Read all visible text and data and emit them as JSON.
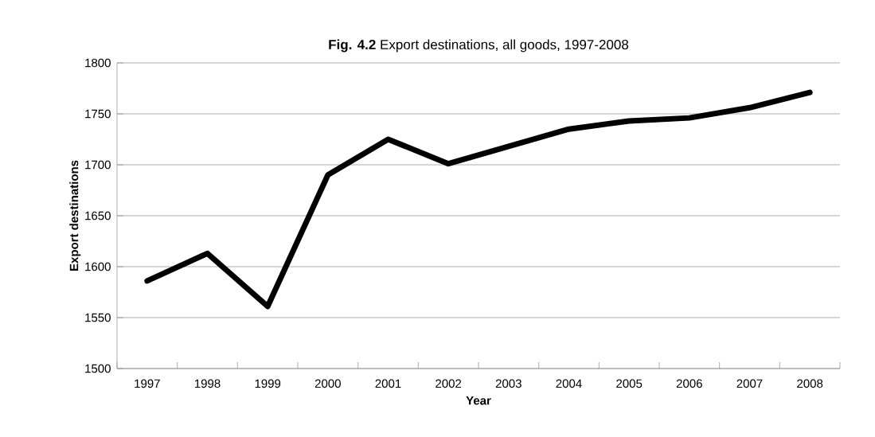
{
  "chart_data": {
    "type": "line",
    "title": "**Fig. 4.2** Export destinations, all goods, 1997-2008",
    "xlabel": "Year",
    "ylabel": "Export destinations",
    "categories": [
      "1997",
      "1998",
      "1999",
      "2000",
      "2001",
      "2002",
      "2003",
      "2004",
      "2005",
      "2006",
      "2007",
      "2008"
    ],
    "series": [
      {
        "color": "#000000",
        "values": [
          1586,
          1613,
          1561,
          1690,
          1725,
          1701,
          1718,
          1735,
          1743,
          1746,
          1756,
          1771
        ]
      }
    ],
    "ylim": [
      1500,
      1800
    ],
    "yticks": [
      1500,
      1550,
      1600,
      1650,
      1700,
      1750,
      1800
    ],
    "grid": "y",
    "legend": false,
    "marker": "none",
    "line_style": "solid"
  }
}
